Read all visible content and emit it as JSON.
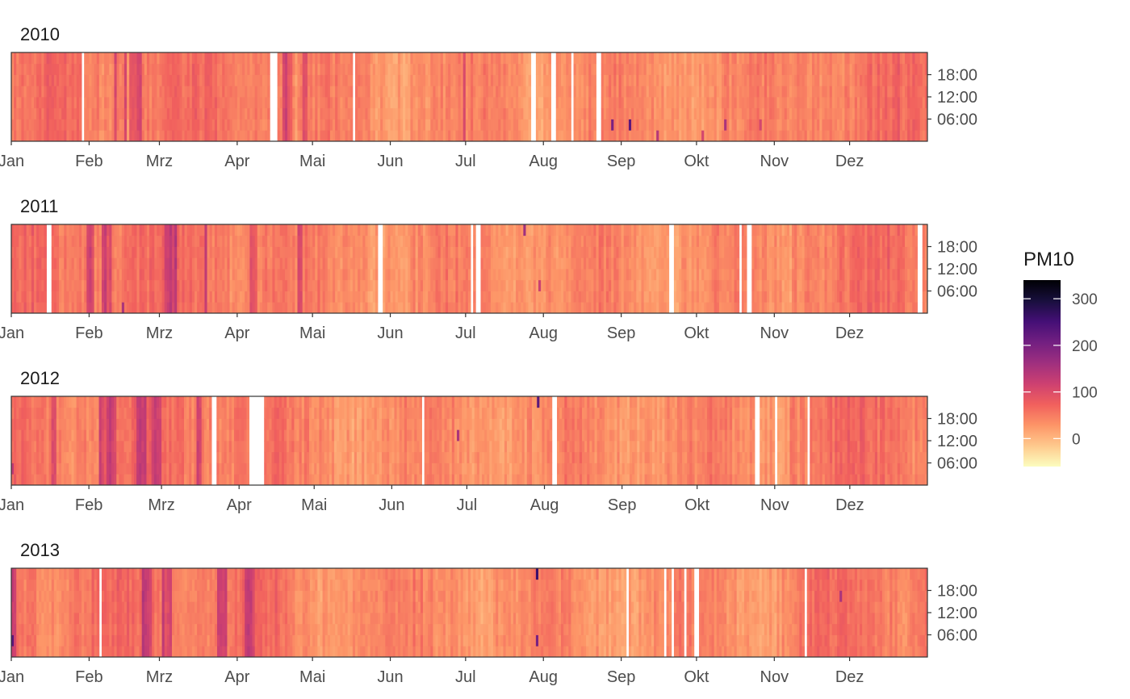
{
  "chart_data": {
    "type": "heatmap",
    "x_tick_labels": [
      "Jan",
      "Feb",
      "Mrz",
      "Apr",
      "Mai",
      "Jun",
      "Jul",
      "Aug",
      "Sep",
      "Okt",
      "Nov",
      "Dez"
    ],
    "y_tick_labels": [
      "06:00",
      "12:00",
      "18:00"
    ],
    "y_tick_hours": [
      6,
      12,
      18
    ],
    "y_range_hours": [
      0,
      24
    ],
    "legend": {
      "title": "PM10",
      "placement": "right",
      "ticks": [
        0,
        100,
        200,
        300
      ],
      "tick_labels": [
        "0",
        "100",
        "200",
        "300"
      ],
      "range": [
        -60,
        340
      ],
      "colors": [
        "#fcfdbf",
        "#fec98d",
        "#fd9567",
        "#f1605d",
        "#cd4071",
        "#9e2f7f",
        "#721f81",
        "#440f76",
        "#180f3d",
        "#000004"
      ]
    },
    "facets": [
      {
        "title": "2010",
        "year": 2010,
        "gaps": [
          [
            28,
            29
          ],
          [
            103,
            106
          ],
          [
            136,
            137
          ],
          [
            207,
            209
          ],
          [
            215,
            217
          ],
          [
            223,
            224
          ],
          [
            233,
            235
          ]
        ],
        "dark_days": [
          [
            47,
            52
          ],
          [
            45,
            46
          ],
          [
            41,
            42
          ],
          [
            108,
            112
          ],
          [
            116,
            118
          ],
          [
            180,
            181
          ]
        ],
        "high_events": [
          [
            257,
            2,
            140
          ],
          [
            246,
            3,
            230
          ],
          [
            239,
            3,
            200
          ],
          [
            275,
            2,
            110
          ],
          [
            284,
            4,
            150
          ],
          [
            298,
            3,
            110
          ]
        ]
      },
      {
        "title": "2011",
        "year": 2011,
        "gaps": [
          [
            14,
            16
          ],
          [
            146,
            148
          ],
          [
            183,
            184
          ],
          [
            185,
            187
          ],
          [
            262,
            264
          ],
          [
            290,
            291
          ],
          [
            293,
            295
          ],
          [
            361,
            363
          ]
        ],
        "dark_days": [
          [
            30,
            33
          ],
          [
            36,
            40
          ],
          [
            61,
            66
          ],
          [
            77,
            78
          ],
          [
            95,
            98
          ],
          [
            114,
            116
          ]
        ],
        "high_events": [
          [
            44,
            2,
            150
          ],
          [
            204,
            21,
            160
          ],
          [
            210,
            6,
            120
          ]
        ]
      },
      {
        "title": "2012",
        "year": 2012,
        "gaps": [
          [
            80,
            82
          ],
          [
            95,
            101
          ],
          [
            164,
            165
          ],
          [
            216,
            218
          ],
          [
            297,
            299
          ],
          [
            305,
            306
          ],
          [
            318,
            319
          ]
        ],
        "dark_days": [
          [
            16,
            18
          ],
          [
            35,
            42
          ],
          [
            50,
            54
          ],
          [
            56,
            60
          ],
          [
            74,
            76
          ]
        ],
        "high_events": [
          [
            210,
            22,
            230
          ],
          [
            178,
            14,
            150
          ],
          [
            0,
            3,
            130
          ]
        ]
      },
      {
        "title": "2013",
        "year": 2013,
        "gaps": [
          [
            35,
            36
          ],
          [
            245,
            246
          ],
          [
            260,
            261
          ],
          [
            263,
            264
          ],
          [
            268,
            269
          ],
          [
            272,
            274
          ],
          [
            316,
            317
          ]
        ],
        "dark_days": [
          [
            0,
            2
          ],
          [
            52,
            56
          ],
          [
            60,
            64
          ],
          [
            82,
            86
          ],
          [
            93,
            97
          ]
        ],
        "high_events": [
          [
            0,
            3,
            230
          ],
          [
            209,
            22,
            260
          ],
          [
            209,
            3,
            200
          ],
          [
            268,
            11,
            250
          ],
          [
            330,
            17,
            150
          ]
        ]
      }
    ]
  }
}
